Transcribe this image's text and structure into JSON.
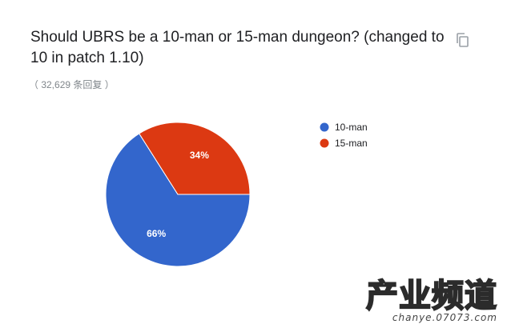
{
  "header": {
    "title": "Should UBRS be a 10-man or 15-man dungeon? (changed to 10 in patch 1.10)",
    "response_count": "（ 32,629 条回复 ）",
    "copy_icon": "copy-icon"
  },
  "chart_data": {
    "type": "pie",
    "title": "Should UBRS be a 10-man or 15-man dungeon? (changed to 10 in patch 1.10)",
    "slices": [
      {
        "label": "10-man",
        "percent": 66,
        "display": "66%",
        "color": "#3366cc"
      },
      {
        "label": "15-man",
        "percent": 34,
        "display": "34%",
        "color": "#dc3912"
      }
    ],
    "legend_position": "right"
  },
  "watermark": {
    "main": "产业频道",
    "sub": "chanye.07073.com"
  }
}
